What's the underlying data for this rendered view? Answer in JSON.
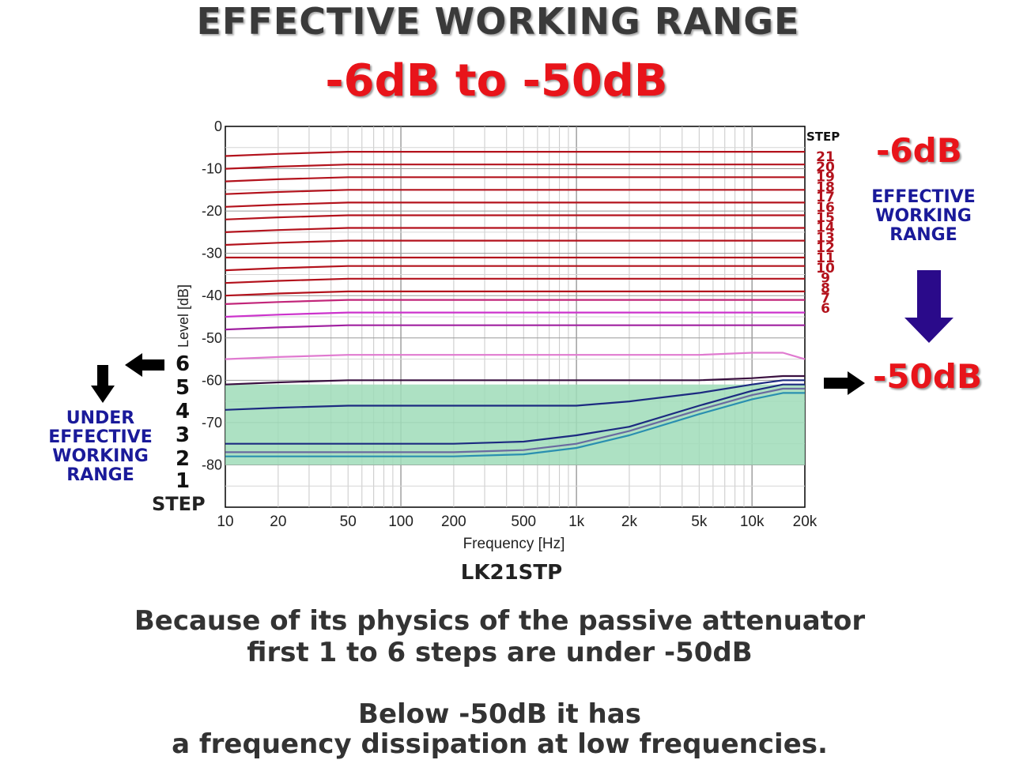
{
  "header": {
    "title": "EFFECTIVE WORKING RANGE",
    "subtitle": "-6dB to -50dB"
  },
  "chart_data": {
    "type": "line",
    "title": "LK21STP",
    "xlabel": "Frequency [Hz]",
    "ylabel": "Level [dB]",
    "x_scale": "log",
    "xlim": [
      10,
      20000
    ],
    "ylim": [
      -90,
      0
    ],
    "grid": true,
    "x_ticks": [
      "10",
      "20",
      "50",
      "100",
      "200",
      "500",
      "1k",
      "2k",
      "5k",
      "10k",
      "20k"
    ],
    "y_ticks": [
      "0",
      "-10",
      "-20",
      "-30",
      "-40",
      "-50",
      "-60",
      "-70",
      "-80"
    ],
    "step_header": "STEP",
    "shaded_band": {
      "from": -80,
      "to": -61,
      "color": "#9fdcb8"
    },
    "frequencies": [
      10,
      20,
      50,
      100,
      200,
      500,
      1000,
      2000,
      5000,
      10000,
      15000,
      20000
    ],
    "series": [
      {
        "name": "21",
        "color": "#b3121c",
        "values": [
          -7,
          -6.5,
          -6,
          -6,
          -6,
          -6,
          -6,
          -6,
          -6,
          -6,
          -6,
          -6
        ]
      },
      {
        "name": "20",
        "color": "#b3121c",
        "values": [
          -10,
          -9.5,
          -9,
          -9,
          -9,
          -9,
          -9,
          -9,
          -9,
          -9,
          -9,
          -9
        ]
      },
      {
        "name": "19",
        "color": "#b3121c",
        "values": [
          -13,
          -12.5,
          -12,
          -12,
          -12,
          -12,
          -12,
          -12,
          -12,
          -12,
          -12,
          -12
        ]
      },
      {
        "name": "18",
        "color": "#b3121c",
        "values": [
          -16,
          -15.5,
          -15,
          -15,
          -15,
          -15,
          -15,
          -15,
          -15,
          -15,
          -15,
          -15
        ]
      },
      {
        "name": "17",
        "color": "#b3121c",
        "values": [
          -19,
          -18.5,
          -18,
          -18,
          -18,
          -18,
          -18,
          -18,
          -18,
          -18,
          -18,
          -18
        ]
      },
      {
        "name": "16",
        "color": "#b3121c",
        "values": [
          -22,
          -21.5,
          -21,
          -21,
          -21,
          -21,
          -21,
          -21,
          -21,
          -21,
          -21,
          -21
        ]
      },
      {
        "name": "15",
        "color": "#b3121c",
        "values": [
          -25,
          -24.5,
          -24,
          -24,
          -24,
          -24,
          -24,
          -24,
          -24,
          -24,
          -24,
          -24
        ]
      },
      {
        "name": "14",
        "color": "#b3121c",
        "values": [
          -28,
          -27.5,
          -27,
          -27,
          -27,
          -27,
          -27,
          -27,
          -27,
          -27,
          -27,
          -27
        ]
      },
      {
        "name": "13",
        "color": "#b3121c",
        "values": [
          -31,
          -31,
          -31,
          -31,
          -31,
          -31,
          -31,
          -31,
          -31,
          -31,
          -31,
          -31
        ]
      },
      {
        "name": "12",
        "color": "#b3121c",
        "values": [
          -34,
          -33.5,
          -33,
          -33,
          -33,
          -33,
          -33,
          -33,
          -33,
          -33,
          -33,
          -33
        ]
      },
      {
        "name": "11",
        "color": "#b3121c",
        "values": [
          -37,
          -36.5,
          -36,
          -36,
          -36,
          -36,
          -36,
          -36,
          -36,
          -36,
          -36,
          -36
        ]
      },
      {
        "name": "10",
        "color": "#b3121c",
        "values": [
          -40,
          -39.5,
          -39,
          -39,
          -39,
          -39,
          -39,
          -39,
          -39,
          -39,
          -39,
          -39
        ]
      },
      {
        "name": "9",
        "color": "#c2267a",
        "values": [
          -42,
          -41.5,
          -41,
          -41,
          -41,
          -41,
          -41,
          -41,
          -41,
          -41,
          -41,
          -41
        ]
      },
      {
        "name": "8",
        "color": "#cc33cc",
        "values": [
          -45,
          -44.5,
          -44,
          -44,
          -44,
          -44,
          -44,
          -44,
          -44,
          -44,
          -44,
          -44
        ]
      },
      {
        "name": "7",
        "color": "#a020a0",
        "values": [
          -48,
          -47.5,
          -47,
          -47,
          -47,
          -47,
          -47,
          -47,
          -47,
          -47,
          -47,
          -47
        ]
      },
      {
        "name": "6",
        "color": "#e07ad0",
        "values": [
          -55,
          -54.5,
          -54,
          -54,
          -54,
          -54,
          -54,
          -54,
          -54,
          -53.5,
          -53.5,
          -55
        ]
      },
      {
        "name": "5",
        "color": "#3a1040",
        "values": [
          -61,
          -60.5,
          -60,
          -60,
          -60,
          -60,
          -60,
          -60,
          -60,
          -59.5,
          -59,
          -59
        ]
      },
      {
        "name": "4",
        "color": "#1c2a80",
        "values": [
          -67,
          -66.5,
          -66,
          -66,
          -66,
          -66,
          -66,
          -65,
          -63,
          -61,
          -60,
          -60
        ]
      },
      {
        "name": "3",
        "color": "#1c2a80",
        "values": [
          -75,
          -75,
          -75,
          -75,
          -75,
          -74.5,
          -73,
          -71,
          -66,
          -62.5,
          -61,
          -61
        ]
      },
      {
        "name": "2",
        "color": "#6a6aa0",
        "values": [
          -77,
          -77,
          -77,
          -77,
          -77,
          -76.5,
          -75,
          -72,
          -67,
          -63.5,
          -62,
          -62
        ]
      },
      {
        "name": "1",
        "color": "#2a8fb0",
        "values": [
          -78,
          -78,
          -78,
          -78,
          -78,
          -77.5,
          -76,
          -73,
          -68,
          -64.5,
          -63,
          -63
        ]
      }
    ]
  },
  "right_panel": {
    "top_value": "-6dB",
    "label_lines": [
      "EFFECTIVE",
      "WORKING",
      "RANGE"
    ],
    "bottom_value": "-50dB",
    "arrow_color": "#2a0a8a"
  },
  "left_panel": {
    "label_lines": [
      "UNDER",
      "EFFECTIVE",
      "WORKING",
      "RANGE"
    ],
    "step_numbers": [
      "6",
      "5",
      "4",
      "3",
      "2",
      "1"
    ],
    "step_word": "STEP"
  },
  "caption": {
    "line1": "Because of its physics of the passive attenuator",
    "line2": "first 1 to 6 steps are under -50dB",
    "line3": "Below -50dB it has",
    "line4": "a frequency dissipation at low frequencies."
  }
}
